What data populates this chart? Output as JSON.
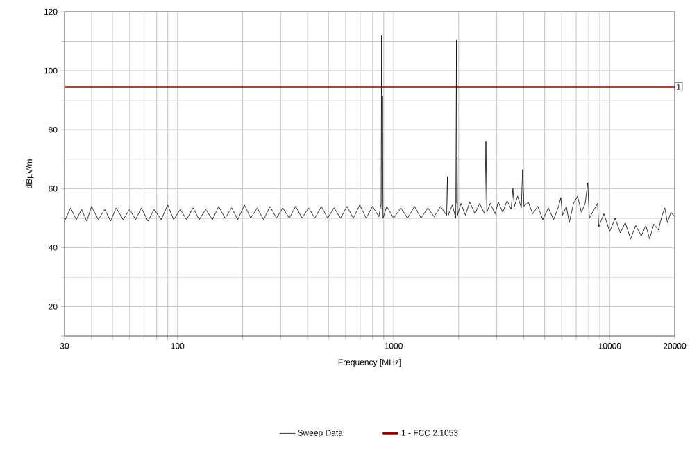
{
  "chart_data": {
    "type": "line",
    "xlabel": "Frequency [MHz]",
    "ylabel": "dBµV/m",
    "log": "x",
    "xlim": [
      30,
      20000
    ],
    "ylim": [
      10,
      120
    ],
    "xticks": [
      30,
      {
        "value": 40,
        "label": null
      },
      {
        "value": 50,
        "label": null
      },
      {
        "value": 60,
        "label": null
      },
      {
        "value": 70,
        "label": null
      },
      {
        "value": 80,
        "label": null
      },
      {
        "value": 90,
        "label": null
      },
      100,
      {
        "value": 200,
        "label": null
      },
      {
        "value": 300,
        "label": null
      },
      {
        "value": 400,
        "label": null
      },
      {
        "value": 500,
        "label": null
      },
      {
        "value": 600,
        "label": null
      },
      {
        "value": 700,
        "label": null
      },
      {
        "value": 800,
        "label": null
      },
      {
        "value": 900,
        "label": null
      },
      1000,
      {
        "value": 2000,
        "label": null
      },
      {
        "value": 3000,
        "label": null
      },
      {
        "value": 4000,
        "label": null
      },
      {
        "value": 5000,
        "label": null
      },
      {
        "value": 6000,
        "label": null
      },
      {
        "value": 7000,
        "label": null
      },
      {
        "value": 8000,
        "label": null
      },
      {
        "value": 9000,
        "label": null
      },
      10000,
      20000
    ],
    "yticks": [
      {
        "value": 10,
        "label": null
      },
      20,
      {
        "value": 30,
        "label": null
      },
      40,
      {
        "value": 50,
        "label": null
      },
      60,
      {
        "value": 70,
        "label": null
      },
      80,
      {
        "value": 90,
        "label": null
      },
      100,
      {
        "value": 110,
        "label": null
      },
      120
    ],
    "grid": true,
    "legend": "bottom",
    "marker": "none",
    "series": [
      {
        "name": "Sweep Data",
        "color": "#000000",
        "x": [
          30,
          32,
          34,
          36,
          38,
          40,
          43,
          46,
          49,
          52,
          56,
          60,
          64,
          68,
          73,
          78,
          84,
          90,
          96,
          103,
          110,
          118,
          126,
          135,
          145,
          155,
          166,
          178,
          190,
          204,
          218,
          234,
          250,
          268,
          287,
          307,
          329,
          352,
          377,
          404,
          432,
          463,
          495,
          530,
          568,
          608,
          651,
          697,
          746,
          799,
          855,
          875,
          880,
          884,
          888,
          893,
          930,
          1000,
          1080,
          1160,
          1250,
          1340,
          1440,
          1540,
          1650,
          1760,
          1775,
          1790,
          1870,
          1940,
          1955,
          1962,
          1968,
          1975,
          2050,
          2150,
          2250,
          2380,
          2500,
          2640,
          2675,
          2700,
          2800,
          2950,
          3050,
          3200,
          3350,
          3500,
          3565,
          3620,
          3750,
          3900,
          3955,
          4010,
          4200,
          4400,
          4650,
          4900,
          5200,
          5500,
          5800,
          5940,
          6050,
          6300,
          6500,
          6800,
          7100,
          7400,
          7700,
          7920,
          8050,
          8400,
          8790,
          8900,
          9400,
          10000,
          10600,
          11200,
          11800,
          12500,
          13200,
          14000,
          14700,
          15300,
          16000,
          16800,
          17500,
          18000,
          18500,
          19200,
          20000
        ],
        "values": [
          49,
          53.5,
          49.5,
          53,
          49,
          54,
          49.5,
          53,
          49,
          53.5,
          49.5,
          53,
          49.5,
          53.5,
          49,
          53,
          49.5,
          54.5,
          49.5,
          53,
          49.5,
          53.5,
          49.5,
          53,
          49.5,
          54,
          50,
          53.5,
          49.5,
          54.5,
          50,
          53.5,
          49.5,
          54,
          50,
          53.5,
          50,
          54,
          50,
          53.5,
          50,
          54,
          50,
          53.5,
          50,
          54,
          50,
          54.5,
          50,
          54,
          50.5,
          55,
          112,
          53,
          91.5,
          50,
          54,
          50,
          53.5,
          50,
          54,
          50,
          53.5,
          50.5,
          54,
          51,
          64,
          51,
          54.5,
          50,
          110.5,
          55,
          71,
          51,
          55,
          51,
          55.5,
          51.5,
          55,
          51.5,
          76,
          52,
          55,
          51.5,
          55.5,
          52,
          56,
          53,
          60,
          54,
          57.5,
          53.5,
          66.5,
          54,
          55.5,
          51.5,
          54,
          49.5,
          53.5,
          49.5,
          54,
          57,
          51,
          54,
          48.5,
          55,
          57.5,
          52,
          55,
          62,
          50,
          52.5,
          55,
          47,
          51.5,
          45.5,
          50,
          45,
          48.5,
          43,
          47.5,
          44,
          47.5,
          43,
          48,
          46,
          51,
          53.5,
          48.5,
          52,
          50.5
        ]
      },
      {
        "name": "1 - FCC 2.1053",
        "color": "#800000",
        "x": [
          30,
          20000
        ],
        "values": [
          94.5,
          94.5
        ]
      }
    ],
    "annotations": [
      {
        "text": "1",
        "x": 20000,
        "y": 94.5
      }
    ]
  }
}
